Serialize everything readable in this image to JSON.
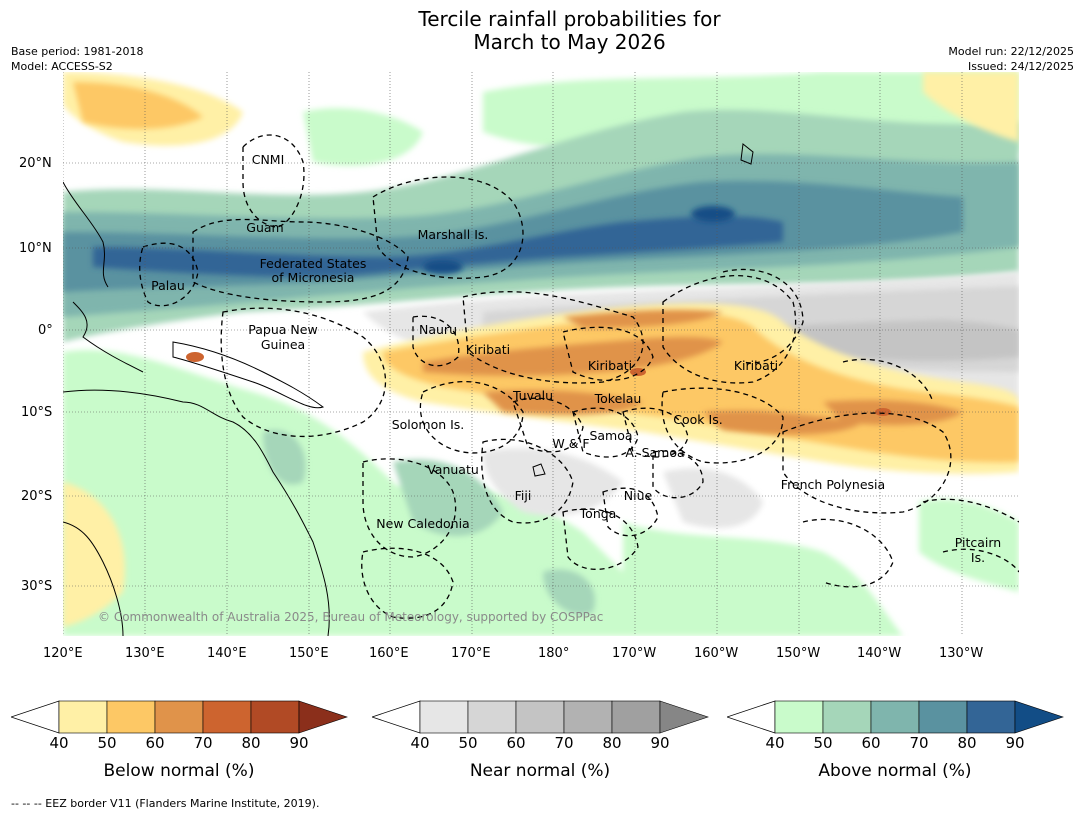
{
  "header": {
    "title_line1": "Tercile rainfall probabilities for",
    "title_line2": "March to May 2026",
    "base_period": "Base period: 1981-2018",
    "model": "Model: ACCESS-S2",
    "model_run": "Model run: 22/12/2025",
    "issued": "Issued: 24/12/2025"
  },
  "map": {
    "lat_ticks": [
      "20°N",
      "10°N",
      "0°",
      "10°S",
      "20°S",
      "30°S"
    ],
    "lon_ticks": [
      "120°E",
      "130°E",
      "140°E",
      "150°E",
      "160°E",
      "170°E",
      "180°",
      "170°W",
      "160°W",
      "150°W",
      "140°W",
      "130°W"
    ],
    "region_labels": [
      "CNMI",
      "Guam",
      "Marshall Is.",
      "Federated States",
      "of Micronesia",
      "Palau",
      "Papua New",
      "Guinea",
      "Nauru",
      "Kiribati",
      "Kiribati",
      "Kiribati",
      "Tuvalu",
      "Tokelau",
      "Solomon Is.",
      "Cook Is.",
      "Samoa",
      "W & F",
      "A. Samoa",
      "Vanuatu",
      "Fiji",
      "Niue",
      "French Polynesia",
      "Tonga",
      "New Caledonia",
      "Pitcairn",
      "Is."
    ],
    "copyright": "© Commonwealth of Australia 2025, Bureau of Meteorology, supported by COSPPac"
  },
  "colorbars": [
    {
      "title": "Below normal (%)",
      "ticks": [
        "40",
        "50",
        "60",
        "70",
        "80",
        "90"
      ],
      "colors": [
        "#fff0a6",
        "#fdc865",
        "#e0934a",
        "#cd642f",
        "#b14a25",
        "#8b2f1b"
      ]
    },
    {
      "title": "Near normal (%)",
      "ticks": [
        "40",
        "50",
        "60",
        "70",
        "80",
        "90"
      ],
      "colors": [
        "#e6e6e6",
        "#d6d6d6",
        "#c4c4c4",
        "#b2b2b2",
        "#a0a0a0",
        "#868686"
      ]
    },
    {
      "title": "Above normal (%)",
      "ticks": [
        "40",
        "50",
        "60",
        "70",
        "80",
        "90"
      ],
      "colors": [
        "#c9fbcb",
        "#a5d6b9",
        "#7fb5ad",
        "#5a92a0",
        "#336596",
        "#124d86"
      ]
    }
  ],
  "footnote": "--  --  -- EEZ border V11 (Flanders Marine Institute, 2019)."
}
